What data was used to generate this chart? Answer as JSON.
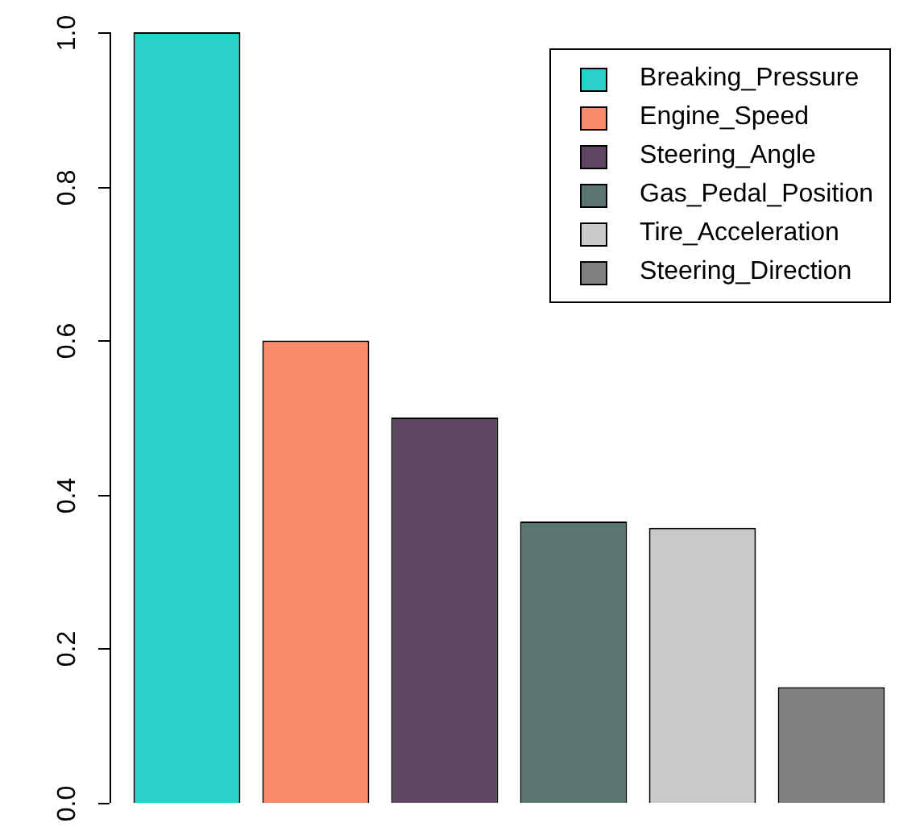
{
  "chart_data": {
    "type": "bar",
    "categories": [
      null,
      null,
      null,
      null,
      null,
      null
    ],
    "stacked": true,
    "series": [
      {
        "name": "Breaking_Pressure",
        "color": "#2ad1c9",
        "values": [
          1.0,
          null,
          null,
          null,
          null,
          null
        ]
      },
      {
        "name": "Engine_Speed",
        "color": "#fa8a6c",
        "values": [
          null,
          0.6,
          null,
          null,
          null,
          null
        ]
      },
      {
        "name": "Steering_Angle",
        "color": "#5e4563",
        "values": [
          null,
          null,
          0.5,
          null,
          null,
          null
        ]
      },
      {
        "name": "Gas_Pedal_Position",
        "color": "#5b7670",
        "values": [
          null,
          null,
          null,
          0.365,
          null,
          null
        ]
      },
      {
        "name": "Tire_Acceleration",
        "color": "#c8c9c9",
        "values": [
          null,
          null,
          null,
          null,
          0.357,
          null
        ]
      },
      {
        "name": "Steering_Direction",
        "color": "#7f7f81",
        "values": [
          null,
          null,
          null,
          null,
          null,
          0.15
        ]
      }
    ],
    "ylim": [
      0,
      1
    ],
    "yticks": [
      {
        "value": 0,
        "label": "0.0"
      },
      {
        "value": 0.2,
        "label": "0.2"
      },
      {
        "value": 0.4,
        "label": "0.4"
      },
      {
        "value": 0.6,
        "label": "0.6"
      },
      {
        "value": 0.8,
        "label": "0.8"
      },
      {
        "value": 1,
        "label": "1.0"
      }
    ],
    "tick_labels": "y",
    "grid": false,
    "legend": "top right"
  }
}
